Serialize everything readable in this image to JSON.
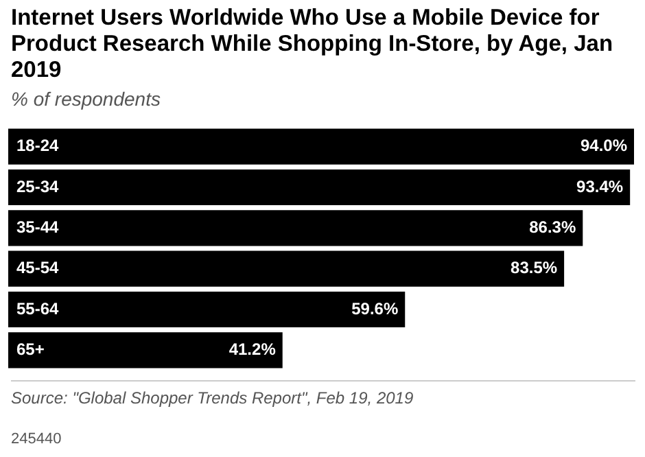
{
  "chart_data": {
    "type": "bar",
    "orientation": "horizontal",
    "title": "Internet Users Worldwide Who Use a Mobile Device for Product Research While Shopping In-Store, by Age, Jan 2019",
    "subtitle": "% of respondents",
    "categories": [
      "18-24",
      "25-34",
      "35-44",
      "45-54",
      "55-64",
      "65+"
    ],
    "values": [
      94.0,
      93.4,
      86.3,
      83.5,
      59.6,
      41.2
    ],
    "value_labels": [
      "94.0%",
      "93.4%",
      "86.3%",
      "83.5%",
      "59.6%",
      "41.2%"
    ],
    "color": "#000000",
    "annotations": [
      "Source: \"Global Shopper Trends Report\", Feb 19, 2019",
      "245440"
    ]
  }
}
